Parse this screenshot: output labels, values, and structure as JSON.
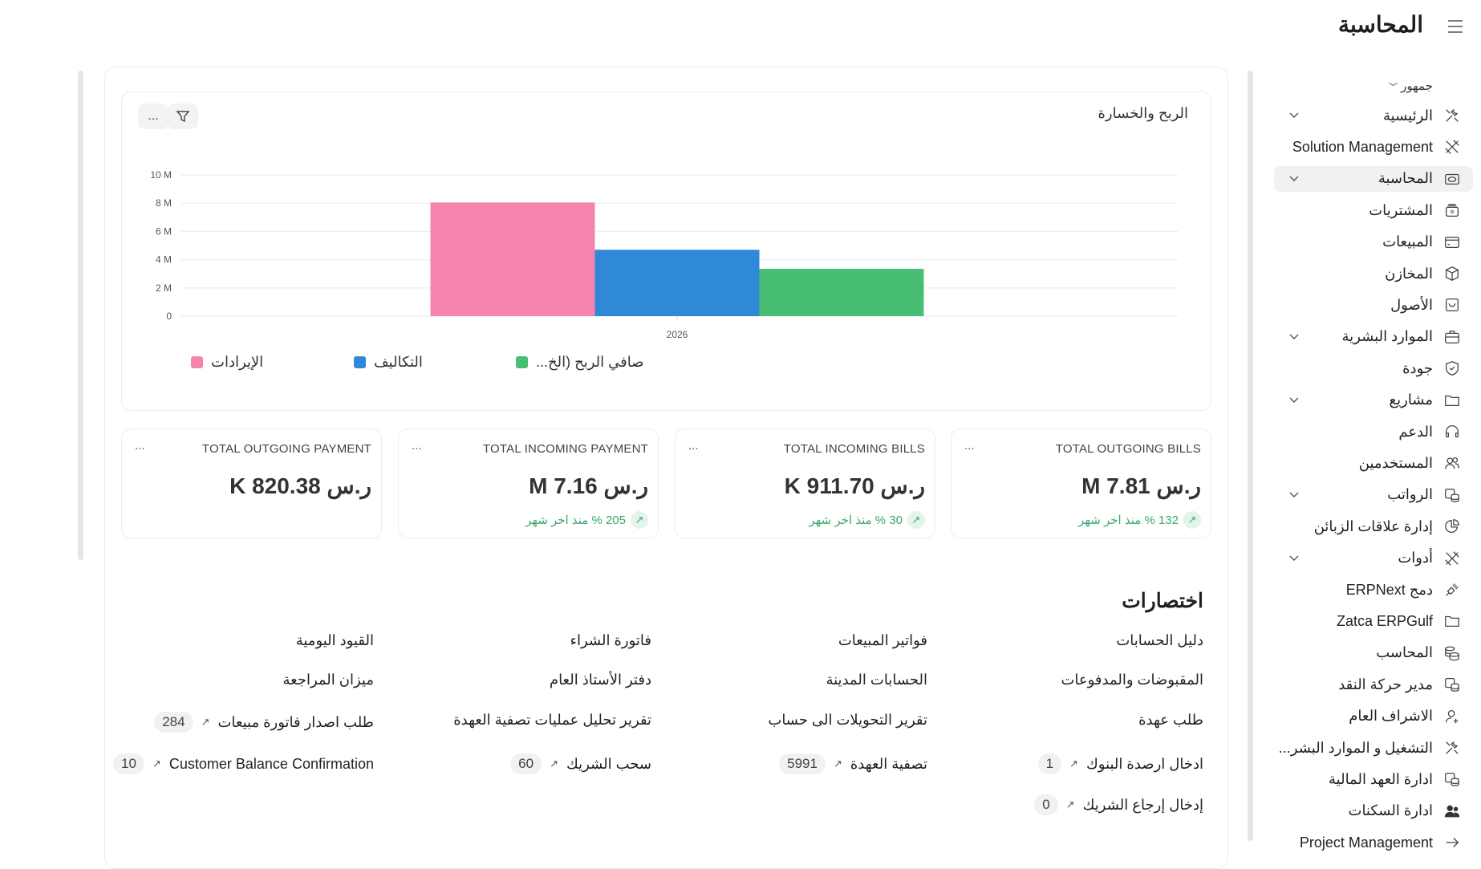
{
  "header": {
    "title": "المحاسبة",
    "menu_icon": "hamburger-icon"
  },
  "sidebar": {
    "workspace": "جمهور",
    "items": [
      {
        "label": "الرئيسية",
        "icon": "tools-icon",
        "chevron": true
      },
      {
        "label": "Solution Management",
        "icon": "hammer-wrench-icon",
        "chevron": false
      },
      {
        "label": "المحاسبة",
        "icon": "money-icon",
        "chevron": true,
        "active": true
      },
      {
        "label": "المشتريات",
        "icon": "purchase-box-icon",
        "chevron": false
      },
      {
        "label": "المبيعات",
        "icon": "card-icon",
        "chevron": false
      },
      {
        "label": "المخازن",
        "icon": "package-icon",
        "chevron": false
      },
      {
        "label": "الأصول",
        "icon": "bag-icon",
        "chevron": false
      },
      {
        "label": "الموارد البشرية",
        "icon": "briefcase-icon",
        "chevron": true
      },
      {
        "label": "جودة",
        "icon": "shield-check-icon",
        "chevron": false
      },
      {
        "label": "مشاريع",
        "icon": "folder-icon",
        "chevron": true
      },
      {
        "label": "الدعم",
        "icon": "headset-icon",
        "chevron": false
      },
      {
        "label": "المستخدمين",
        "icon": "users-icon",
        "chevron": false
      },
      {
        "label": "الرواتب",
        "icon": "payroll-icon",
        "chevron": true
      },
      {
        "label": "إدارة علاقات الزبائن",
        "icon": "pie-icon",
        "chevron": false
      },
      {
        "label": "أدوات",
        "icon": "hammer-wrench-icon",
        "chevron": true
      },
      {
        "label": "دمج ERPNext",
        "icon": "plug-icon",
        "chevron": false
      },
      {
        "label": "Zatca ERPGulf",
        "icon": "folder-icon",
        "chevron": false
      },
      {
        "label": "المحاسب",
        "icon": "coins-icon",
        "chevron": false
      },
      {
        "label": "مدير حركة النقد",
        "icon": "payroll-icon",
        "chevron": false
      },
      {
        "label": "الاشراف العام",
        "icon": "user-plus-icon",
        "chevron": false
      },
      {
        "label": "التشغيل و الموارد البشر...",
        "icon": "tools-icon",
        "chevron": false
      },
      {
        "label": "ادارة العهد المالية",
        "icon": "payroll-icon",
        "chevron": false
      },
      {
        "label": "ادارة السكنات",
        "icon": "users-solid-icon",
        "chevron": false
      },
      {
        "label": "Project Management",
        "icon": "arrow-right-icon",
        "chevron": false
      }
    ]
  },
  "chart": {
    "title": "الربح والخسارة",
    "filter_icon": "filter-icon",
    "more_label": "...",
    "chart_data": {
      "type": "bar",
      "categories": [
        "2026"
      ],
      "ylim": [
        0,
        10000000
      ],
      "yticks": [
        "0",
        "2 M",
        "4 M",
        "6 M",
        "8 M",
        "10 M"
      ],
      "grid": true,
      "legend": "bottom-left",
      "series": [
        {
          "name": "الإيرادات",
          "values": [
            8050000
          ],
          "color": "#f484ad"
        },
        {
          "name": "التكاليف",
          "values": [
            4700000
          ],
          "color": "#2f89d8"
        },
        {
          "name": "صافي الربح (الخ...",
          "values": [
            3350000
          ],
          "color": "#48bd74"
        }
      ]
    }
  },
  "stats": [
    {
      "label": "TOTAL OUTGOING BILLS",
      "value": "ر.س 7.81 M",
      "change": "132 % منذ اخر شهر"
    },
    {
      "label": "TOTAL INCOMING BILLS",
      "value": "ر.س 911.70 K",
      "change": "30 % منذ اخر شهر"
    },
    {
      "label": "TOTAL INCOMING PAYMENT",
      "value": "ر.س 7.16 M",
      "change": "205 % منذ اخر شهر"
    },
    {
      "label": "TOTAL OUTGOING PAYMENT",
      "value": "ر.س 820.38 K",
      "change": ""
    }
  ],
  "stat_more": "...",
  "shortcuts": {
    "title": "اختصارات",
    "items": [
      {
        "label": "دليل الحسابات"
      },
      {
        "label": "فواتير المبيعات"
      },
      {
        "label": "فاتورة الشراء"
      },
      {
        "label": "القيود اليومية"
      },
      {
        "label": "المقبوضات والمدفوعات"
      },
      {
        "label": "الحسابات المدينة"
      },
      {
        "label": "دفتر الأستاذ العام"
      },
      {
        "label": "ميزان المراجعة"
      },
      {
        "label": "طلب عهدة"
      },
      {
        "label": "تقرير التحويلات الى حساب"
      },
      {
        "label": "تقرير تحليل عمليات تصفية العهدة"
      },
      {
        "label": "طلب اصدار فاتورة مبيعات",
        "count": "284"
      },
      {
        "label": "ادخال ارصدة البنوك",
        "count": "1"
      },
      {
        "label": "تصفية العهدة",
        "count": "5991"
      },
      {
        "label": "سحب الشريك",
        "count": "60"
      },
      {
        "label": "Customer Balance Confirmation",
        "count": "10"
      },
      {
        "label": "إدخال إرجاع الشريك",
        "count": "0"
      }
    ]
  }
}
